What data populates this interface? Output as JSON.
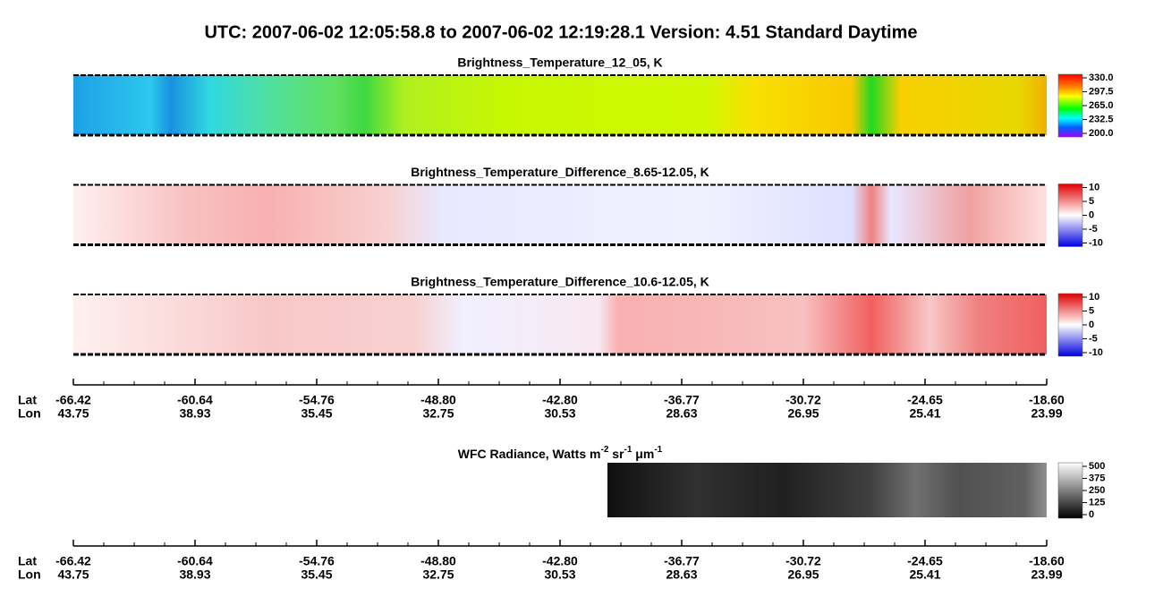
{
  "header": {
    "title": "UTC:  2007-06-02   12:05:58.8  to  2007-06-02   12:19:28.1    Version: 4.51  Standard Daytime"
  },
  "panels": [
    {
      "title": "Brightness_Temperature_12_05, K",
      "lim": [
        200,
        330
      ],
      "ticks": [
        {
          "value": 330,
          "label": "330.0"
        },
        297.5,
        {
          "value": 265,
          "label": "265.0"
        },
        232.5,
        {
          "value": 200,
          "label": "200.0"
        }
      ]
    },
    {
      "title": "Brightness_Temperature_Difference_8.65-12.05, K",
      "lim": [
        -10,
        10
      ],
      "ticks": [
        10,
        5,
        0,
        -5,
        -10
      ]
    },
    {
      "title": "Brightness_Temperature_Difference_10.6-12.05, K",
      "lim": [
        -10,
        10
      ],
      "ticks": [
        10,
        5,
        0,
        -5,
        -10
      ]
    }
  ],
  "wfc": {
    "title_parts": [
      "WFC Radiance, Watts m",
      "-2",
      " sr",
      "-1",
      " μm",
      "-1"
    ],
    "lim": [
      0,
      500
    ],
    "ticks": [
      500,
      375,
      250,
      125,
      0
    ]
  },
  "axes": [
    {
      "lat_label": "Lat",
      "lon_label": "Lon",
      "lat": [
        "-66.42",
        "-60.64",
        "-54.76",
        "-48.80",
        "-42.80",
        "-36.77",
        "-30.72",
        "-24.65",
        "-18.60"
      ],
      "lon": [
        "43.75",
        "38.93",
        "35.45",
        "32.75",
        "30.53",
        "28.63",
        "26.95",
        "25.41",
        "23.99"
      ]
    },
    {
      "lat_label": "Lat",
      "lon_label": "Lon",
      "lat": [
        "-66.42",
        "-60.64",
        "-54.76",
        "-48.80",
        "-42.80",
        "-36.77",
        "-30.72",
        "-24.65",
        "-18.60"
      ],
      "lon": [
        "43.75",
        "38.93",
        "35.45",
        "32.75",
        "30.53",
        "28.63",
        "26.95",
        "25.41",
        "23.99"
      ]
    }
  ]
}
